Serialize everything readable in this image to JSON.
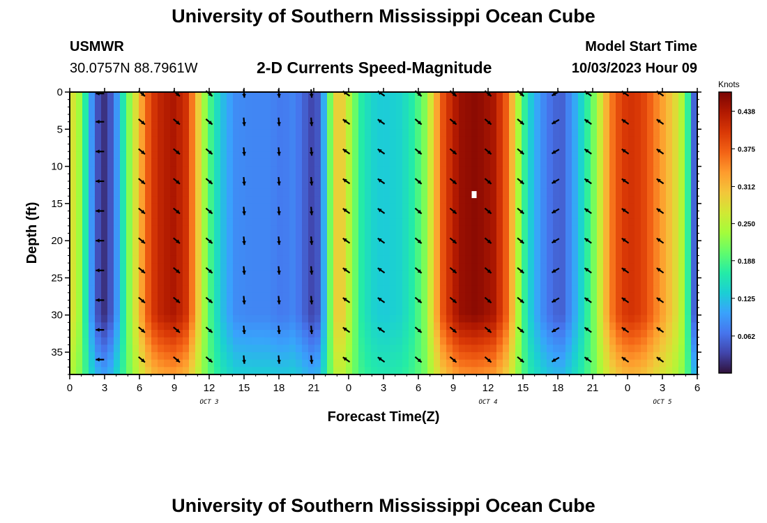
{
  "page": {
    "title": "University of Southern Mississippi Ocean Cube",
    "station": "USMWR",
    "coords": "30.0757N  88.7961W",
    "subtitle": "2-D Currents Speed-Magnitude",
    "model_start_label": "Model Start Time",
    "model_start_value": "10/03/2023 Hour 09",
    "bottom_title": "University of Southern Mississippi Ocean Cube"
  },
  "chart_data": {
    "type": "heatmap",
    "title": "2-D Currents Speed-Magnitude",
    "xlabel": "Forecast Time(Z)",
    "ylabel": "Depth (ft)",
    "x_range_hours": [
      0,
      54
    ],
    "y_range_ft": [
      0,
      38
    ],
    "x_ticks": [
      {
        "h": 0,
        "label": "0"
      },
      {
        "h": 3,
        "label": "3"
      },
      {
        "h": 6,
        "label": "6"
      },
      {
        "h": 9,
        "label": "9"
      },
      {
        "h": 12,
        "label": "12"
      },
      {
        "h": 15,
        "label": "15"
      },
      {
        "h": 18,
        "label": "18"
      },
      {
        "h": 21,
        "label": "21"
      },
      {
        "h": 24,
        "label": "0"
      },
      {
        "h": 27,
        "label": "3"
      },
      {
        "h": 30,
        "label": "6"
      },
      {
        "h": 33,
        "label": "9"
      },
      {
        "h": 36,
        "label": "12"
      },
      {
        "h": 39,
        "label": "15"
      },
      {
        "h": 42,
        "label": "18"
      },
      {
        "h": 45,
        "label": "21"
      },
      {
        "h": 48,
        "label": "0"
      },
      {
        "h": 51,
        "label": "3"
      },
      {
        "h": 54,
        "label": "6"
      }
    ],
    "y_ticks": [
      0,
      5,
      10,
      15,
      20,
      25,
      30,
      35
    ],
    "day_labels": [
      {
        "h": 12,
        "label": "OCT 3"
      },
      {
        "h": 36,
        "label": "OCT 4"
      },
      {
        "h": 51,
        "label": "OCT 5"
      }
    ],
    "colorbar": {
      "title": "Knots",
      "range": [
        0.0,
        0.47
      ],
      "ticks": [
        "0.062",
        "0.125",
        "0.188",
        "0.250",
        "0.312",
        "0.375",
        "0.438"
      ]
    },
    "speed_profile": [
      {
        "h": 0,
        "speed": 0.29
      },
      {
        "h": 1,
        "speed": 0.22
      },
      {
        "h": 1.6,
        "speed": 0.13
      },
      {
        "h": 2.2,
        "speed": 0.05
      },
      {
        "h": 3,
        "speed": 0.02
      },
      {
        "h": 3.8,
        "speed": 0.06
      },
      {
        "h": 4.5,
        "speed": 0.15
      },
      {
        "h": 5.3,
        "speed": 0.24
      },
      {
        "h": 6.2,
        "speed": 0.33
      },
      {
        "h": 7,
        "speed": 0.4
      },
      {
        "h": 8,
        "speed": 0.43
      },
      {
        "h": 9,
        "speed": 0.44
      },
      {
        "h": 10,
        "speed": 0.41
      },
      {
        "h": 10.8,
        "speed": 0.33
      },
      {
        "h": 11.5,
        "speed": 0.24
      },
      {
        "h": 12.3,
        "speed": 0.17
      },
      {
        "h": 13.2,
        "speed": 0.12
      },
      {
        "h": 14.2,
        "speed": 0.085
      },
      {
        "h": 15.5,
        "speed": 0.08
      },
      {
        "h": 17,
        "speed": 0.08
      },
      {
        "h": 18.3,
        "speed": 0.07
      },
      {
        "h": 19.3,
        "speed": 0.08
      },
      {
        "h": 20.3,
        "speed": 0.05
      },
      {
        "h": 21,
        "speed": 0.03
      },
      {
        "h": 21.6,
        "speed": 0.06
      },
      {
        "h": 22.2,
        "speed": 0.17
      },
      {
        "h": 22.8,
        "speed": 0.29
      },
      {
        "h": 23.4,
        "speed": 0.3
      },
      {
        "h": 24,
        "speed": 0.25
      },
      {
        "h": 25,
        "speed": 0.17
      },
      {
        "h": 26,
        "speed": 0.14
      },
      {
        "h": 27,
        "speed": 0.13
      },
      {
        "h": 28.5,
        "speed": 0.14
      },
      {
        "h": 29.6,
        "speed": 0.17
      },
      {
        "h": 30.6,
        "speed": 0.22
      },
      {
        "h": 31.4,
        "speed": 0.31
      },
      {
        "h": 32.2,
        "speed": 0.39
      },
      {
        "h": 33.5,
        "speed": 0.45
      },
      {
        "h": 35,
        "speed": 0.46
      },
      {
        "h": 36.5,
        "speed": 0.44
      },
      {
        "h": 37.5,
        "speed": 0.38
      },
      {
        "h": 38.2,
        "speed": 0.3
      },
      {
        "h": 38.8,
        "speed": 0.21
      },
      {
        "h": 39.5,
        "speed": 0.14
      },
      {
        "h": 40.5,
        "speed": 0.09
      },
      {
        "h": 41.5,
        "speed": 0.06
      },
      {
        "h": 42.3,
        "speed": 0.05
      },
      {
        "h": 43.2,
        "speed": 0.09
      },
      {
        "h": 44.2,
        "speed": 0.15
      },
      {
        "h": 45.2,
        "speed": 0.22
      },
      {
        "h": 45.8,
        "speed": 0.28
      },
      {
        "h": 46.5,
        "speed": 0.35
      },
      {
        "h": 47.5,
        "speed": 0.4
      },
      {
        "h": 48.5,
        "speed": 0.41
      },
      {
        "h": 49.5,
        "speed": 0.39
      },
      {
        "h": 50.5,
        "speed": 0.35
      },
      {
        "h": 51.3,
        "speed": 0.32
      },
      {
        "h": 52,
        "speed": 0.29
      },
      {
        "h": 52.7,
        "speed": 0.24
      },
      {
        "h": 53.3,
        "speed": 0.16
      },
      {
        "h": 53.7,
        "speed": 0.06
      },
      {
        "h": 54,
        "speed": 0.02
      }
    ],
    "vector_columns": [
      {
        "h": 2.6,
        "dir": "W"
      },
      {
        "h": 6.2,
        "dir": "SE"
      },
      {
        "h": 9.2,
        "dir": "SE"
      },
      {
        "h": 12,
        "dir": "SE"
      },
      {
        "h": 15,
        "dir": "S"
      },
      {
        "h": 18,
        "dir": "S"
      },
      {
        "h": 20.8,
        "dir": "S"
      },
      {
        "h": 23.8,
        "dir": "NW"
      },
      {
        "h": 26.8,
        "dir": "NW"
      },
      {
        "h": 30,
        "dir": "SE"
      },
      {
        "h": 33,
        "dir": "SE"
      },
      {
        "h": 36,
        "dir": "SE"
      },
      {
        "h": 38.8,
        "dir": "SE"
      },
      {
        "h": 41.8,
        "dir": "SW"
      },
      {
        "h": 44.6,
        "dir": "NW"
      },
      {
        "h": 47.8,
        "dir": "NW"
      },
      {
        "h": 50.8,
        "dir": "NW"
      }
    ],
    "vector_depths_ft": [
      0.2,
      4,
      8,
      12,
      16,
      20,
      24,
      28,
      32,
      36
    ],
    "marker": {
      "h": 34.8,
      "depth": 13.8
    }
  },
  "colors": {
    "colormap": [
      "#30123b",
      "#4145ab",
      "#4675ed",
      "#39a2fc",
      "#1bcfd4",
      "#24eca6",
      "#61fc6c",
      "#a4fc3b",
      "#d1e834",
      "#f3c63a",
      "#fe9b2d",
      "#f36315",
      "#d93806",
      "#b11901",
      "#7a0403"
    ],
    "vector": "#000000",
    "marker": "#ffffff"
  }
}
